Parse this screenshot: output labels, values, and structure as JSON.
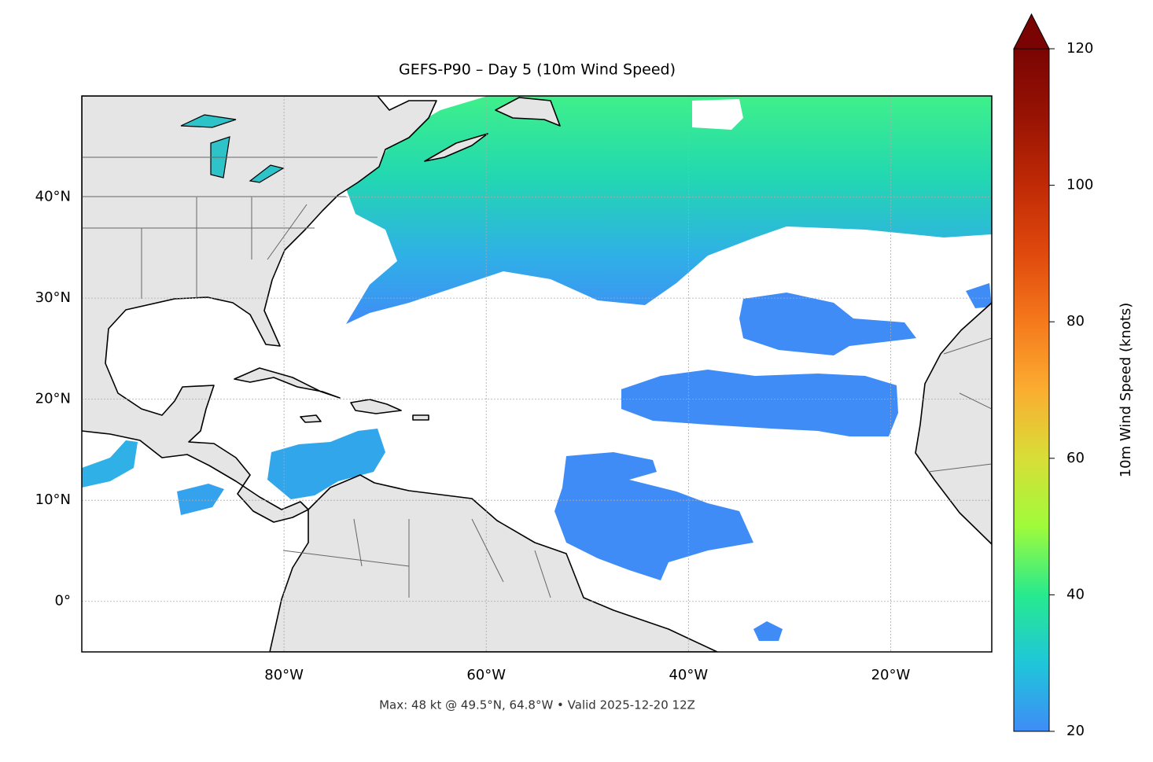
{
  "chart_data": {
    "type": "map",
    "title": "GEFS-P90 – Day 5 (10m Wind Speed)",
    "footnote": "Max: 48 kt @ 49.5°N, 64.8°W • Valid 2025-12-20 12Z",
    "xlim": [
      -100,
      -10
    ],
    "ylim": [
      -5,
      50
    ],
    "xticks": [
      {
        "value": -80,
        "label": "80°W"
      },
      {
        "value": -60,
        "label": "60°W"
      },
      {
        "value": -40,
        "label": "40°W"
      },
      {
        "value": -20,
        "label": "20°W"
      }
    ],
    "yticks": [
      {
        "value": 0,
        "label": "0°"
      },
      {
        "value": 10,
        "label": "10°N"
      },
      {
        "value": 20,
        "label": "20°N"
      },
      {
        "value": 30,
        "label": "30°N"
      },
      {
        "value": 40,
        "label": "40°N"
      }
    ],
    "grid": true,
    "colorbar": {
      "label": "10m Wind Speed (knots)",
      "lim": [
        20,
        120
      ],
      "ticks": [
        20,
        40,
        60,
        80,
        100,
        120
      ],
      "colors": [
        "#3f8cf7",
        "#1fc6da",
        "#27ea8e",
        "#9ffb3b",
        "#d8de37",
        "#fbad31",
        "#f5791c",
        "#e0490d",
        "#c02a05",
        "#981304",
        "#7a0403"
      ]
    }
  }
}
